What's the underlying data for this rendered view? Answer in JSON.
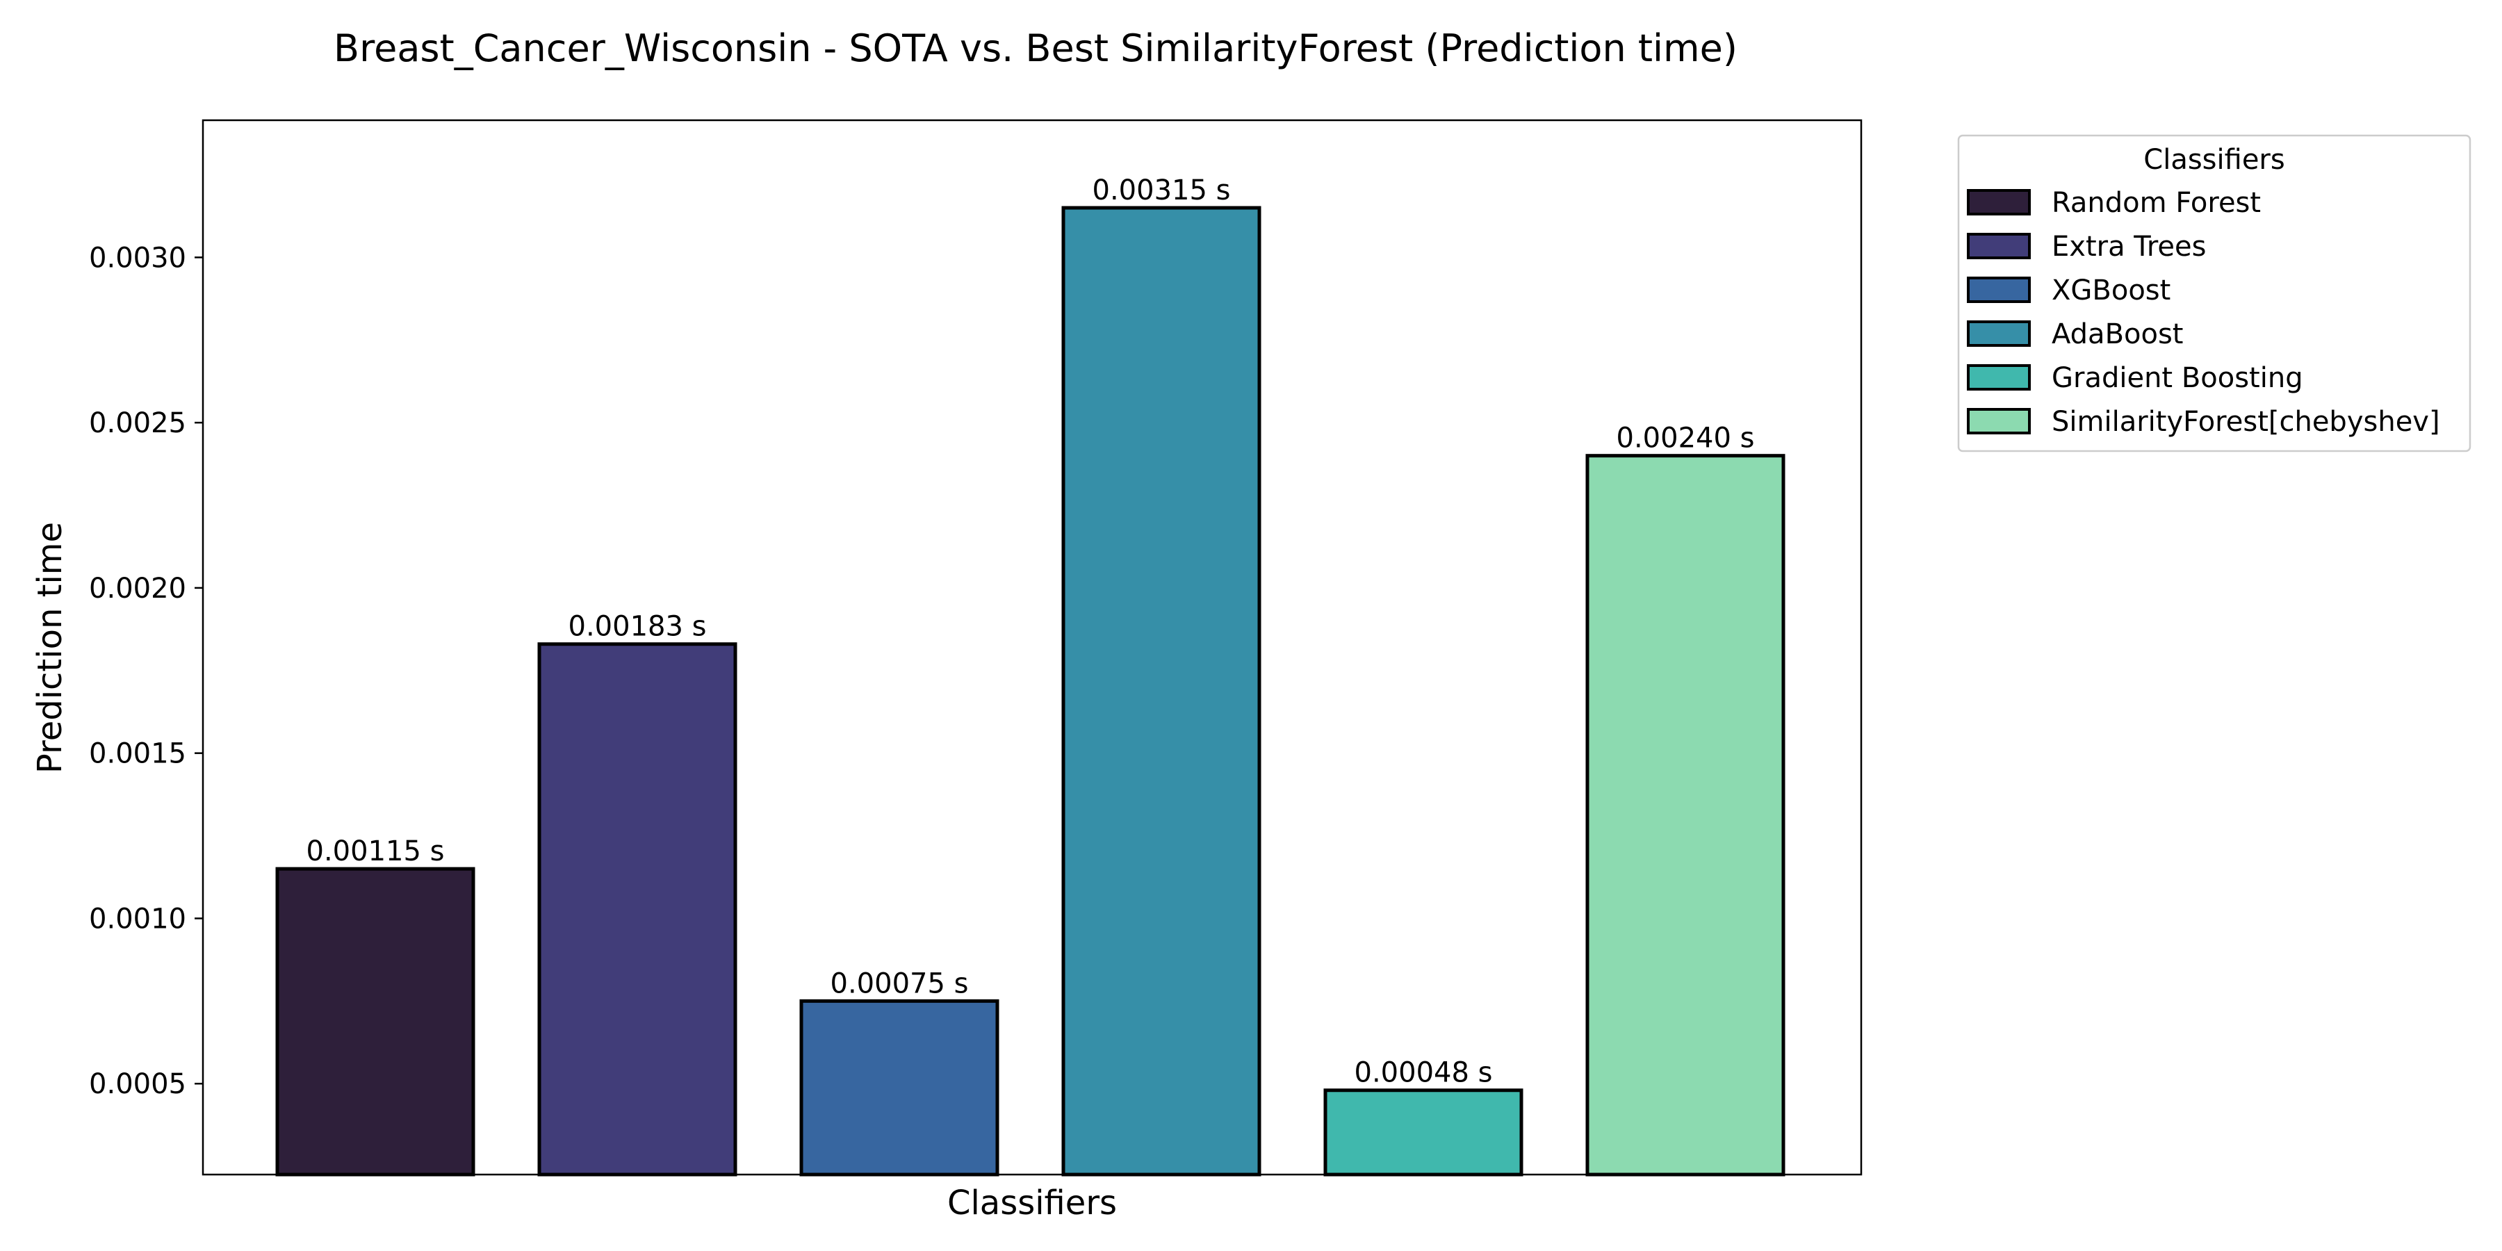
{
  "chart_data": {
    "type": "bar",
    "title": "Breast_Cancer_Wisconsin - SOTA vs. Best SimilarityForest (Prediction time)",
    "xlabel": "Classifiers",
    "ylabel": "Prediction time",
    "categories": [
      "Random Forest",
      "Extra Trees",
      "XGBoost",
      "AdaBoost",
      "Gradient Boosting",
      "SimilarityForest[chebyshev]"
    ],
    "values": [
      0.00115,
      0.00183,
      0.00075,
      0.00315,
      0.00048,
      0.0024
    ],
    "data_labels": [
      "0.00115 s",
      "0.00183 s",
      "0.00075 s",
      "0.00315 s",
      "0.00048 s",
      "0.00240 s"
    ],
    "colors": [
      "#2e1f3a",
      "#413d79",
      "#3766a0",
      "#368fa8",
      "#40b8ad",
      "#8cdab0"
    ],
    "ylim": [
      0.000225,
      0.003415
    ],
    "yticks": [
      0.0005,
      0.001,
      0.0015,
      0.002,
      0.0025,
      0.003
    ],
    "ytick_labels": [
      "0.0005",
      "0.0010",
      "0.0015",
      "0.0020",
      "0.0025",
      "0.0030"
    ],
    "grid": false,
    "legend": {
      "title": "Classifiers",
      "placement": "outside-right-top"
    }
  }
}
